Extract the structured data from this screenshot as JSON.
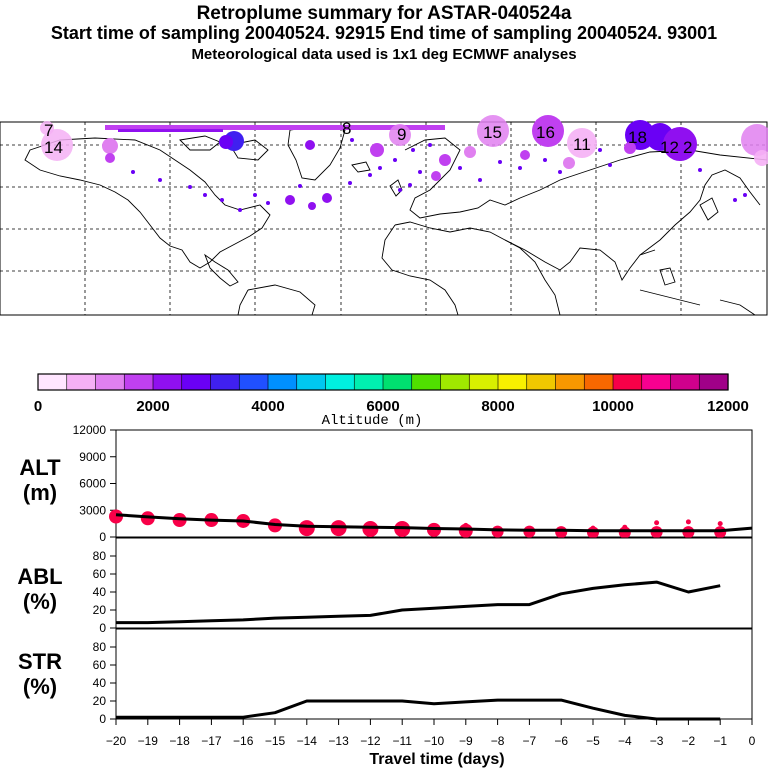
{
  "title": {
    "line1": "Retroplume summary for ASTAR-040524a",
    "line2": "Start time of sampling 20040524. 92915     End time of sampling 20040524. 93001",
    "line3": "Meteorological data used is 1x1 deg ECMWF analyses"
  },
  "map": {
    "labels": [
      "14",
      "15",
      "16",
      "11",
      "18",
      "12",
      "2",
      "7",
      "8",
      "9"
    ]
  },
  "colorbar": {
    "label": "Altitude (m)",
    "tick_labels": [
      "0",
      "2000",
      "4000",
      "6000",
      "8000",
      "10000",
      "12000"
    ],
    "colors": [
      "#ffe6ff",
      "#f5b0f5",
      "#e080f0",
      "#c040f0",
      "#9010f0",
      "#6a00f5",
      "#4020f0",
      "#2050ff",
      "#0090ff",
      "#00c8f0",
      "#00f0e0",
      "#00f0b0",
      "#00e070",
      "#50e000",
      "#a0e800",
      "#d8f000",
      "#f8f000",
      "#f0c800",
      "#f89800",
      "#f86800",
      "#f80048",
      "#f80090",
      "#d0008c",
      "#a00088"
    ]
  },
  "panels": {
    "alt": {
      "label_line1": "ALT",
      "label_line2": "(m)"
    },
    "abl": {
      "label_line1": "ABL",
      "label_line2": "(%)"
    },
    "str": {
      "label_line1": "STR",
      "label_line2": "(%)"
    }
  },
  "chart_data": [
    {
      "type": "line",
      "name": "ALT",
      "xlabel": "Travel time (days)",
      "ylabel": "ALT (m)",
      "x": [
        -20,
        -19,
        -18,
        -17,
        -16,
        -15,
        -14,
        -13,
        -12,
        -11,
        -10,
        -9,
        -8,
        -7,
        -6,
        -5,
        -4,
        -3,
        -2,
        -1,
        0
      ],
      "values": [
        2500,
        2250,
        2050,
        1900,
        1800,
        1400,
        1200,
        1150,
        1100,
        1050,
        950,
        900,
        800,
        750,
        750,
        700,
        700,
        700,
        700,
        700,
        1000
      ],
      "scatter_values": [
        2300,
        2100,
        1900,
        1900,
        1800,
        1300,
        1000,
        1000,
        900,
        900,
        800,
        700,
        600,
        600,
        550,
        500,
        500,
        550,
        550,
        550
      ],
      "scatter_sizes": [
        7,
        7,
        7,
        7,
        7,
        7,
        8,
        8,
        8,
        8,
        7,
        7,
        6,
        6,
        6,
        6,
        6,
        6,
        6,
        6
      ],
      "scatter_top": [
        null,
        null,
        null,
        null,
        null,
        null,
        1500,
        1400,
        1300,
        1300,
        1200,
        1300,
        null,
        null,
        null,
        1000,
        1100,
        1600,
        1700,
        1500
      ],
      "ylim": [
        0,
        12000
      ],
      "yticks": [
        0,
        3000,
        6000,
        9000,
        12000
      ],
      "xticks": [
        -20,
        -19,
        -18,
        -17,
        -16,
        -15,
        -14,
        -13,
        -12,
        -11,
        -10,
        -9,
        -8,
        -7,
        -6,
        -5,
        -4,
        -3,
        -2,
        -1,
        0
      ]
    },
    {
      "type": "line",
      "name": "ABL",
      "ylabel": "ABL (%)",
      "x": [
        -20,
        -19,
        -18,
        -17,
        -16,
        -15,
        -14,
        -13,
        -12,
        -11,
        -10,
        -9,
        -8,
        -7,
        -6,
        -5,
        -4,
        -3,
        -2,
        -1
      ],
      "values": [
        6,
        6,
        7,
        8,
        9,
        11,
        12,
        13,
        14,
        20,
        22,
        24,
        26,
        26,
        38,
        44,
        48,
        51,
        40,
        47
      ],
      "ylim": [
        0,
        100
      ],
      "yticks": [
        0,
        20,
        40,
        60,
        80
      ]
    },
    {
      "type": "line",
      "name": "STR",
      "ylabel": "STR (%)",
      "x": [
        -20,
        -19,
        -18,
        -17,
        -16,
        -15,
        -14,
        -13,
        -12,
        -11,
        -10,
        -9,
        -8,
        -7,
        -6,
        -5,
        -4,
        -3,
        -2,
        -1
      ],
      "values": [
        2,
        2,
        2,
        2,
        2,
        7,
        20,
        20,
        20,
        20,
        17,
        19,
        21,
        21,
        21,
        12,
        4,
        0,
        0,
        0
      ],
      "ylim": [
        0,
        100
      ],
      "yticks": [
        0,
        20,
        40,
        60,
        80
      ]
    }
  ]
}
